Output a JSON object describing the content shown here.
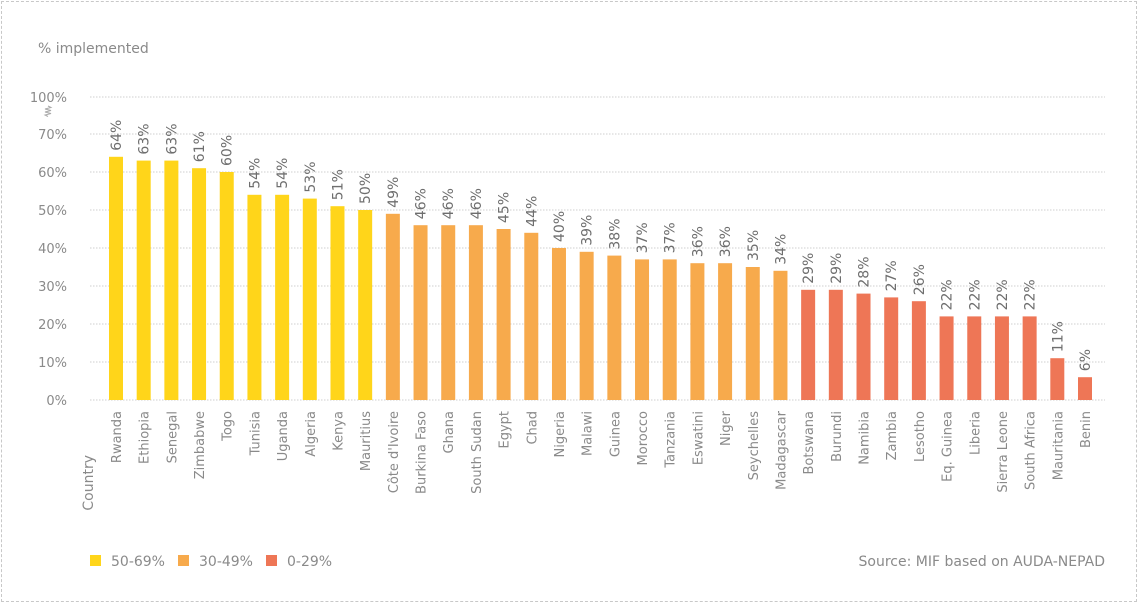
{
  "chart_data": {
    "type": "bar",
    "ylabel": "% implemented",
    "xlabel": "Country",
    "ylim": [
      0,
      100
    ],
    "axis_break": [
      70,
      100
    ],
    "yticks": [
      "0%",
      "10%",
      "20%",
      "30%",
      "40%",
      "50%",
      "60%",
      "70%",
      "100%"
    ],
    "grid": true,
    "categories": [
      "Rwanda",
      "Ethiopia",
      "Senegal",
      "Zimbabwe",
      "Togo",
      "Tunisia",
      "Uganda",
      "Algeria",
      "Kenya",
      "Mauritius",
      "Côte d'Ivoire",
      "Burkina Faso",
      "Ghana",
      "South Sudan",
      "Egypt",
      "Chad",
      "Nigeria",
      "Malawi",
      "Guinea",
      "Morocco",
      "Tanzania",
      "Eswatini",
      "Niger",
      "Seychelles",
      "Madagascar",
      "Botswana",
      "Burundi",
      "Namibia",
      "Zambia",
      "Lesotho",
      "Eq. Guinea",
      "Liberia",
      "Sierra Leone",
      "South Africa",
      "Mauritania",
      "Benin"
    ],
    "values": [
      64,
      63,
      63,
      61,
      60,
      54,
      54,
      53,
      51,
      50,
      49,
      46,
      46,
      46,
      45,
      44,
      40,
      39,
      38,
      37,
      37,
      36,
      36,
      35,
      34,
      29,
      29,
      28,
      27,
      26,
      22,
      22,
      22,
      22,
      11,
      6
    ],
    "legend": [
      {
        "label": "50-69%",
        "color": "#FFD51A",
        "min": 50
      },
      {
        "label": "30-49%",
        "color": "#F7AA4C",
        "min": 30
      },
      {
        "label": "0-29%",
        "color": "#EE7656",
        "min": 0
      }
    ],
    "legend_position": "bottom-left",
    "source": "Source: MIF based on AUDA-NEPAD"
  }
}
